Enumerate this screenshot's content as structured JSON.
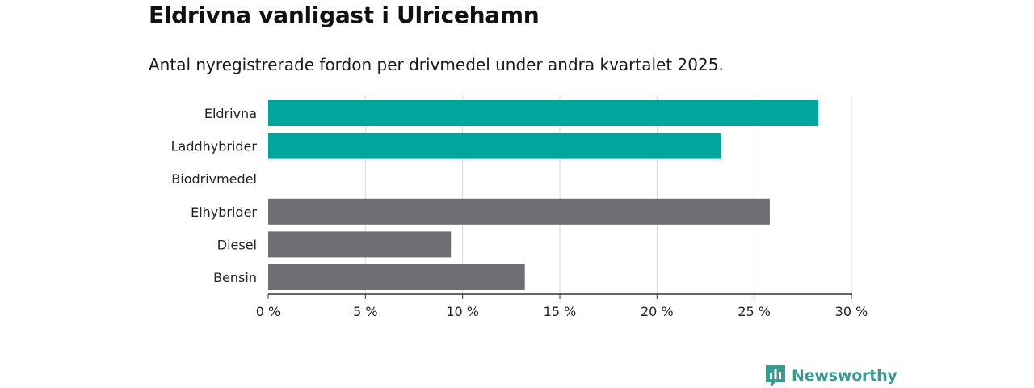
{
  "title": "Eldrivna vanligast i Ulricehamn",
  "subtitle": "Antal nyregistrerade fordon per drivmedel under andra kvartalet 2025.",
  "brand": {
    "name": "Newsworthy",
    "color": "#3a9a92"
  },
  "colors": {
    "highlight": "#00a59b",
    "default": "#6e6d73",
    "grid": "#d9d9d9",
    "axis": "#333333"
  },
  "chart_data": {
    "type": "bar",
    "orientation": "horizontal",
    "title": "Eldrivna vanligast i Ulricehamn",
    "subtitle": "Antal nyregistrerade fordon per drivmedel under andra kvartalet 2025.",
    "categories": [
      "Eldrivna",
      "Laddhybrider",
      "Biodrivmedel",
      "Elhybrider",
      "Diesel",
      "Bensin"
    ],
    "values": [
      28.3,
      23.3,
      0,
      25.8,
      9.4,
      13.2
    ],
    "highlight": [
      true,
      true,
      false,
      false,
      false,
      false
    ],
    "xlim": [
      0,
      30
    ],
    "xticks": [
      0,
      5,
      10,
      15,
      20,
      25,
      30
    ],
    "xtick_labels": [
      "0 %",
      "5 %",
      "10 %",
      "15 %",
      "20 %",
      "25 %",
      "30 %"
    ],
    "xlabel": "",
    "ylabel": "",
    "grid": true
  }
}
